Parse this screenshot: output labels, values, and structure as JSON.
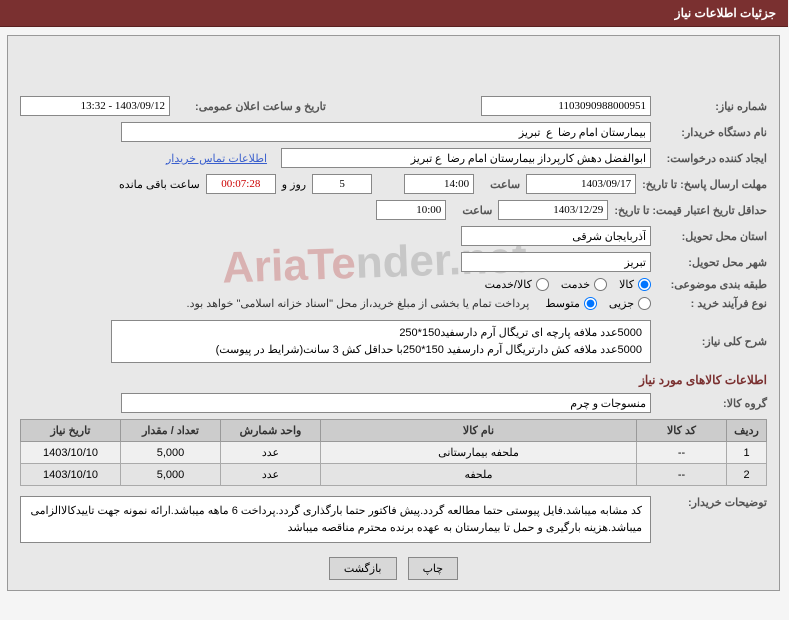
{
  "header": {
    "title": "جزئیات اطلاعات نیاز"
  },
  "fields": {
    "need_no_label": "شماره نیاز:",
    "need_no": "1103090988000951",
    "announce_label": "تاریخ و ساعت اعلان عمومی:",
    "announce": "1403/09/12 - 13:32",
    "buyer_org_label": "نام دستگاه خریدار:",
    "buyer_org": "بیمارستان امام رضا  ع  تبریز",
    "requester_label": "ایجاد کننده درخواست:",
    "requester": "ابوالفضل دهش کارپرداز بیمارستان امام رضا  ع تبریز",
    "contact_link": "اطلاعات تماس خریدار",
    "deadline_label": "مهلت ارسال پاسخ: تا تاریخ:",
    "deadline_date": "1403/09/17",
    "time_label": "ساعت",
    "deadline_time": "14:00",
    "days": "5",
    "days_suffix": "روز و",
    "countdown": "00:07:28",
    "remain_suffix": "ساعت باقی مانده",
    "validity_label": "حداقل تاریخ اعتبار قیمت: تا تاریخ:",
    "validity_date": "1403/12/29",
    "validity_time": "10:00",
    "province_label": "استان محل تحویل:",
    "province": "آذربایجان شرقی",
    "city_label": "شهر محل تحویل:",
    "city": "تبریز",
    "category_label": "طبقه بندی موضوعی:",
    "cat_goods": "کالا",
    "cat_service": "خدمت",
    "cat_both": "کالا/خدمت",
    "process_label": "نوع فرآیند خرید :",
    "proc_partial": "جزیی",
    "proc_medium": "متوسط",
    "payment_note": "پرداخت تمام یا بخشی از مبلغ خرید،از محل \"اسناد خزانه اسلامی\" خواهد بود.",
    "summary_label": "شرح کلی نیاز:",
    "summary_l1": "5000عدد ملافه پارچه ای تریگال آرم دارسفید150*250",
    "summary_l2": "5000عدد ملافه کش دارتریگال آرم دارسفید 150*250با حداقل کش 3 سانت(شرایط در پیوست)",
    "goods_section": "اطلاعات کالاهای مورد نیاز",
    "group_label": "گروه کالا:",
    "group": "منسوجات و چرم",
    "buyer_notes_label": "توضیحات خریدار:",
    "buyer_notes": "کد مشابه میباشد.فایل پیوستی حتما مطالعه گردد.پیش فاکتور حتما بارگذاری گردد.پرداخت 6 ماهه میباشد.ارائه نمونه جهت تاییدکالاالزامی میباشد.هزینه بارگیری و حمل تا بیمارستان به عهده برنده محترم مناقصه میباشد"
  },
  "table": {
    "cols": {
      "row": "ردیف",
      "code": "کد کالا",
      "name": "نام کالا",
      "unit": "واحد شمارش",
      "qty": "تعداد / مقدار",
      "date": "تاریخ نیاز"
    },
    "rows": [
      {
        "row": "1",
        "code": "--",
        "name": "ملحفه بیمارستانی",
        "unit": "عدد",
        "qty": "5,000",
        "date": "1403/10/10"
      },
      {
        "row": "2",
        "code": "--",
        "name": "ملحفه",
        "unit": "عدد",
        "qty": "5,000",
        "date": "1403/10/10"
      }
    ]
  },
  "buttons": {
    "print": "چاپ",
    "back": "بازگشت"
  },
  "watermark": {
    "part1": "AriaTe",
    "part2": "nder.net"
  }
}
